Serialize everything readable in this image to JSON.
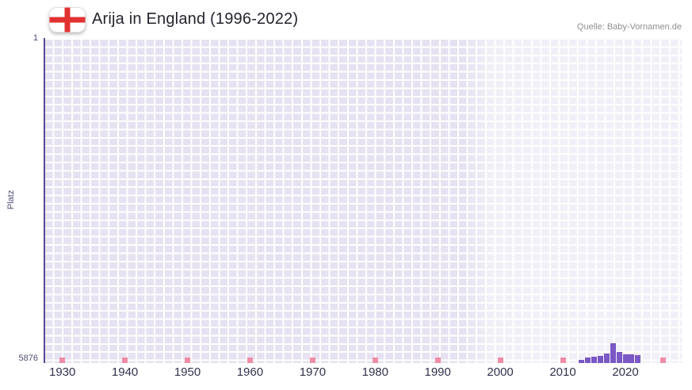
{
  "header": {
    "title": "Arija in England (1996-2022)",
    "source": "Quelle: Baby-Vornamen.de"
  },
  "chart_data": {
    "type": "bar",
    "title": "Arija in England (1996-2022)",
    "xlabel": "",
    "ylabel": "Platz",
    "y_axis": {
      "min": 1,
      "max": 5876,
      "inverted": true,
      "top_tick_label": "1",
      "bottom_tick_label": "5876"
    },
    "x_ticks": [
      "1930",
      "1940",
      "1950",
      "1960",
      "1970",
      "1980",
      "1990",
      "2000",
      "2010",
      "2020"
    ],
    "xlim": [
      1927,
      2029
    ],
    "highlight_period": [
      1994,
      2029
    ],
    "decade_marks": [
      1930,
      1940,
      1950,
      1960,
      1970,
      1980,
      1990,
      2000,
      2010,
      2020,
      2026
    ],
    "series": [
      {
        "name": "Arija",
        "points": [
          {
            "year": 2013,
            "rank": 5815
          },
          {
            "year": 2014,
            "rank": 5775
          },
          {
            "year": 2015,
            "rank": 5758
          },
          {
            "year": 2016,
            "rank": 5742
          },
          {
            "year": 2017,
            "rank": 5700
          },
          {
            "year": 2018,
            "rank": 5520
          },
          {
            "year": 2019,
            "rank": 5668
          },
          {
            "year": 2020,
            "rank": 5712
          },
          {
            "year": 2021,
            "rank": 5718
          },
          {
            "year": 2022,
            "rank": 5735
          }
        ]
      }
    ],
    "grid": true,
    "legend_position": "none",
    "colors": {
      "bar": "#7a58c5",
      "decade_mark": "#f08da6",
      "plot_bg": "#e6e2f1",
      "grid_line": "#ffffff",
      "highlight_overlay": "rgba(255,255,255,0.45)",
      "y_axis_line": "#5b4896",
      "flag_cross": "#e23131"
    }
  }
}
